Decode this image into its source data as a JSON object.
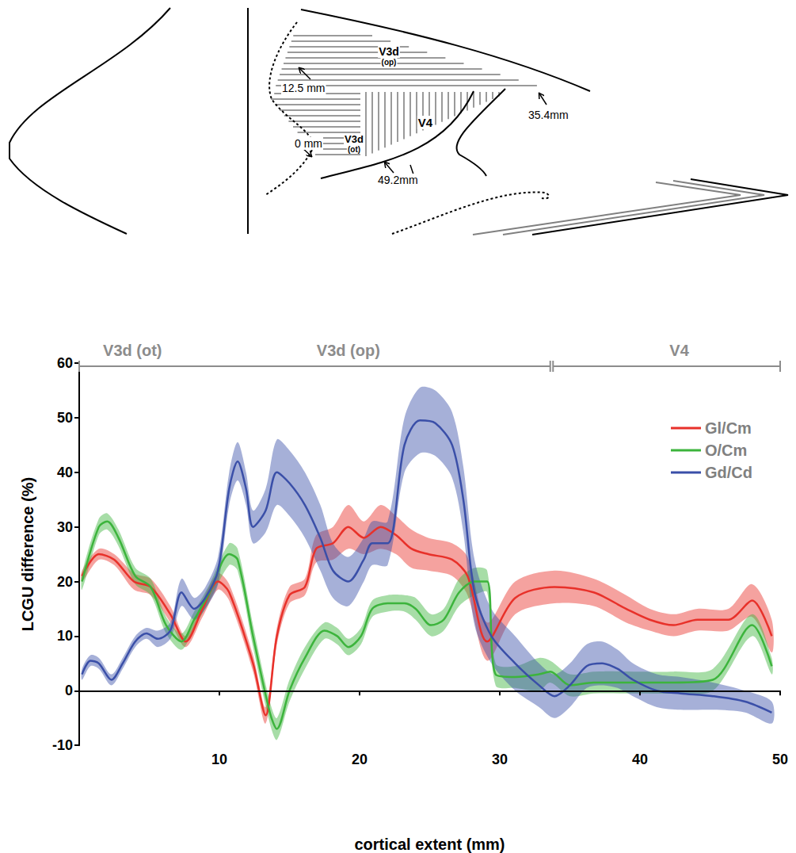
{
  "diagram": {
    "labels": [
      {
        "text": "12.5 mm"
      },
      {
        "text": "V3d"
      },
      {
        "text": "(op)"
      },
      {
        "text": "35.4mm"
      },
      {
        "text": "0 mm"
      },
      {
        "text": "V3d"
      },
      {
        "text": "(ot)"
      },
      {
        "text": "V4"
      },
      {
        "text": "49.2mm"
      }
    ]
  },
  "chart_data": {
    "type": "line",
    "x_label": "cortical extent (mm)",
    "y_label": "LCGU difference (%)",
    "xlim": [
      0,
      50
    ],
    "xticks": [
      10,
      20,
      30,
      40,
      50
    ],
    "ylim": [
      -10,
      60
    ],
    "yticks": [
      -10,
      0,
      10,
      20,
      30,
      40,
      50,
      60
    ],
    "grid": false,
    "legend": "top-right",
    "regions": [
      {
        "start": 0,
        "end": 33.6
      },
      {
        "start": 33.8,
        "end": 50
      }
    ],
    "region_labels": [
      {
        "text": "V3d (ot)",
        "x": 3.8
      },
      {
        "text": "V3d (op)",
        "x": 19.2
      },
      {
        "text": "V4",
        "x": 42.8
      }
    ],
    "series": [
      {
        "name": "Gl/Cm",
        "color": "#e8312a",
        "marker": "none",
        "line_style": "solid",
        "x": [
          0.2,
          1.4,
          2.5,
          3.9,
          5.1,
          6.5,
          7.6,
          8.8,
          9.9,
          10.7,
          12.4,
          13.3,
          14.1,
          15.0,
          16.1,
          16.9,
          18.1,
          19.2,
          20.3,
          21.5,
          22.6,
          23.7,
          24.9,
          26.6,
          27.7,
          29.1,
          31.1,
          33.9,
          36.7,
          39.0,
          40.7,
          42.4,
          44.1,
          46.3,
          48.0,
          49.4
        ],
        "values": [
          21,
          25,
          24,
          20,
          19,
          14,
          9,
          15,
          20,
          18,
          5,
          -4.5,
          10,
          17.5,
          19,
          26,
          27,
          30,
          28,
          30,
          28.5,
          26,
          25,
          24,
          21,
          9,
          17,
          19,
          18,
          15,
          13,
          12,
          13,
          13,
          16.5,
          10
        ],
        "error": [
          1,
          1,
          1,
          1.5,
          1.5,
          1.5,
          1,
          1.5,
          1.5,
          1.5,
          1.5,
          1.5,
          1.5,
          1.5,
          1.5,
          2.5,
          3,
          4,
          3,
          4,
          3.5,
          3.5,
          3,
          3,
          3.5,
          3.5,
          3,
          3,
          2.5,
          2.5,
          2,
          2,
          2,
          2,
          3,
          3
        ]
      },
      {
        "name": "O/Cm",
        "color": "#3cb43c",
        "marker": "none",
        "line_style": "solid",
        "x": [
          0.2,
          1.4,
          2.0,
          2.8,
          4.0,
          5.1,
          6.2,
          7.3,
          8.2,
          9.3,
          10.7,
          11.3,
          12.4,
          13.6,
          14.1,
          15.0,
          16.1,
          17.5,
          18.4,
          19.2,
          20.1,
          20.9,
          22.0,
          23.2,
          24.0,
          25.1,
          26.0,
          27.1,
          28.2,
          29.1,
          29.7,
          31.1,
          32.8,
          33.6,
          35.0,
          36.7,
          39.5,
          42.4,
          45.2,
          48.0,
          49.4
        ],
        "values": [
          20,
          30,
          31,
          28,
          21,
          19,
          12,
          9,
          13,
          18,
          25,
          24,
          10,
          -4,
          -7,
          0,
          6,
          11,
          10,
          8,
          10,
          15,
          16,
          16,
          15,
          12,
          13,
          18,
          20,
          20,
          3,
          2.5,
          3,
          3.5,
          1,
          1.5,
          1.5,
          1.5,
          2,
          12,
          4.5
        ],
        "error": [
          1.5,
          1.5,
          1.5,
          1.5,
          1.5,
          1.5,
          1.5,
          1.5,
          1.5,
          1.5,
          2,
          2,
          2,
          2,
          2,
          2,
          2,
          1.5,
          1.5,
          1.5,
          1.5,
          1.5,
          1.5,
          1.5,
          2,
          2,
          2,
          2.5,
          2.5,
          2,
          2,
          2,
          3,
          2,
          2,
          2,
          2,
          2,
          2,
          2,
          1.5
        ]
      },
      {
        "name": "Gd/Cd",
        "color": "#3a4fa8",
        "marker": "none",
        "line_style": "solid",
        "x": [
          0.2,
          0.8,
          1.4,
          2.3,
          3.1,
          4.0,
          4.8,
          5.6,
          6.5,
          7.3,
          8.2,
          9.0,
          9.9,
          10.7,
          11.3,
          11.9,
          12.4,
          13.3,
          14.1,
          15.0,
          16.1,
          17.2,
          18.1,
          19.2,
          20.3,
          20.9,
          22.0,
          23.2,
          24.3,
          25.4,
          26.6,
          27.4,
          28.2,
          29.4,
          31.1,
          32.8,
          33.9,
          35.0,
          36.2,
          37.3,
          38.4,
          39.5,
          41.2,
          42.9,
          45.2,
          47.5,
          49.4
        ],
        "values": [
          3,
          5.5,
          5,
          2,
          5,
          9,
          10.5,
          9.5,
          11,
          18,
          15,
          17,
          22,
          37,
          42,
          37,
          30,
          33,
          40,
          38,
          34,
          28,
          22,
          20,
          24,
          27,
          27,
          45,
          49.5,
          49,
          45,
          35,
          18,
          10,
          5,
          1,
          -1,
          1,
          4.5,
          5,
          4,
          2,
          0,
          -0.5,
          -1,
          -2,
          -4
        ],
        "error": [
          1,
          1,
          1,
          1,
          1,
          1,
          1,
          1.5,
          1.5,
          2.5,
          2,
          2,
          2.5,
          3,
          3.5,
          3,
          3,
          4,
          6,
          6,
          6,
          6,
          5,
          4.5,
          4,
          4,
          4,
          5,
          6,
          6,
          6,
          6,
          6,
          5,
          5,
          4,
          4,
          4,
          4,
          4,
          3.5,
          3,
          3,
          3,
          2.5,
          2,
          2
        ]
      }
    ]
  }
}
